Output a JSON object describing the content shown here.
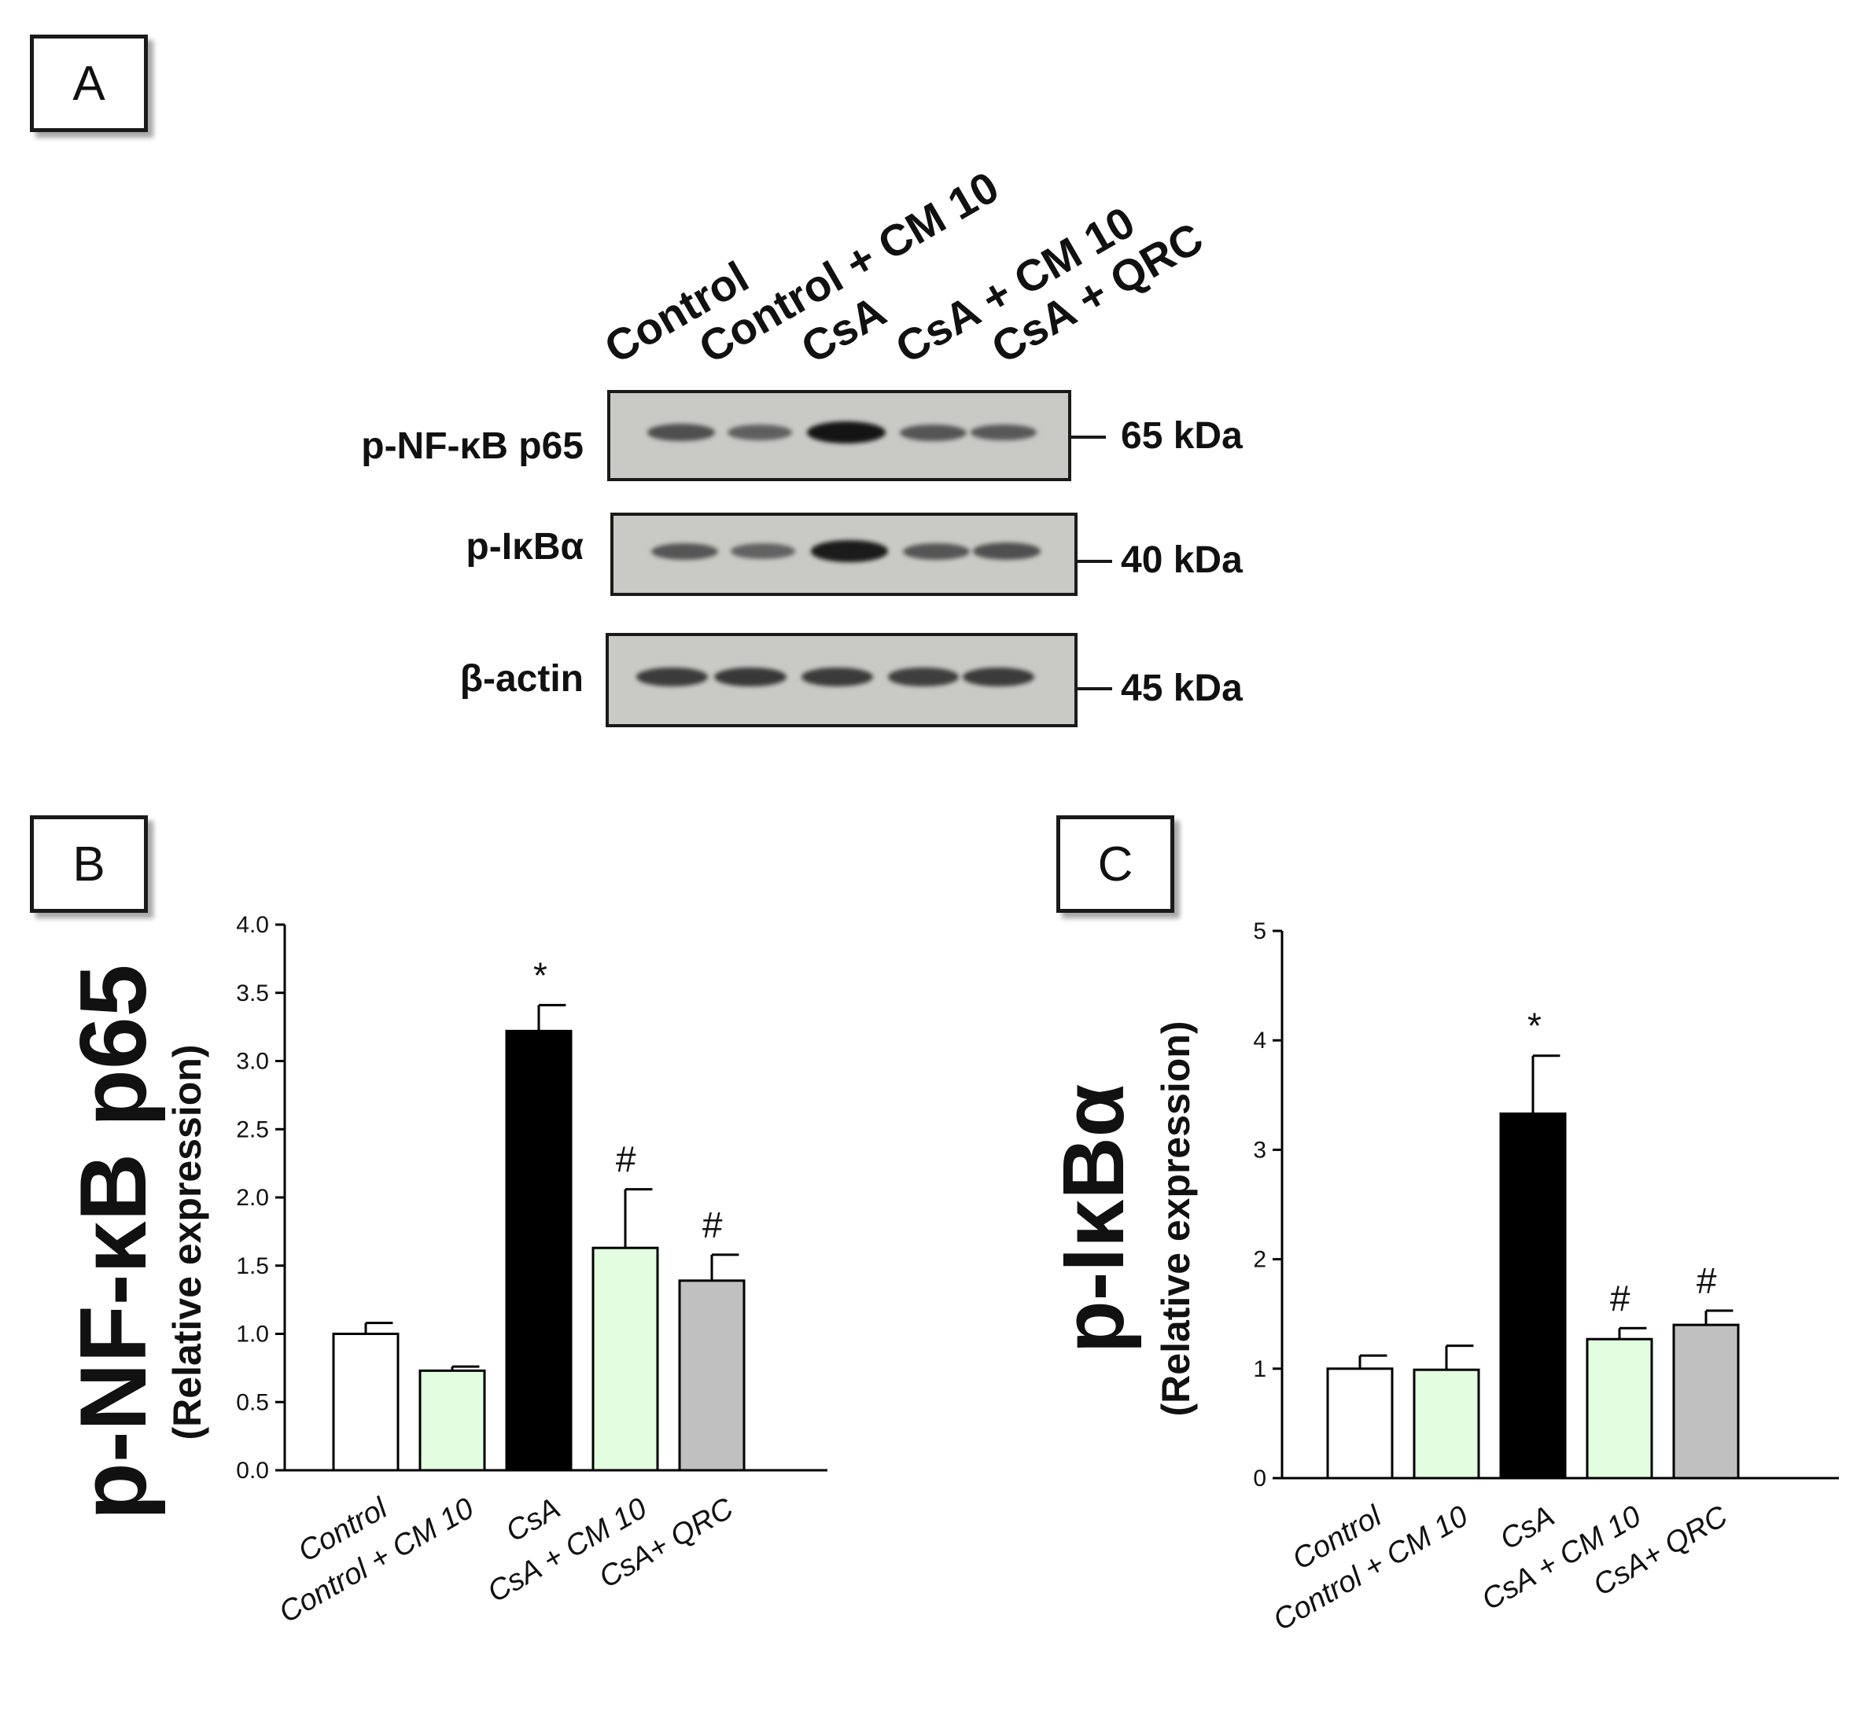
{
  "panels": {
    "a": "A",
    "b": "B",
    "c": "C"
  },
  "blot": {
    "lanes": [
      "Control",
      "Control + CM 10",
      "CsA",
      "CsA + CM 10",
      "CsA + QRC"
    ],
    "rows": [
      {
        "label": "p-NF-κB p65",
        "kda": "65 kDa",
        "intensity": [
          0.55,
          0.42,
          1.0,
          0.5,
          0.48
        ]
      },
      {
        "label": "p-IκBα",
        "kda": "40 kDa",
        "intensity": [
          0.5,
          0.4,
          0.95,
          0.5,
          0.55
        ]
      },
      {
        "label": "β-actin",
        "kda": "45 kDa",
        "intensity": [
          0.7,
          0.72,
          0.7,
          0.68,
          0.7
        ]
      }
    ]
  },
  "chart_data": [
    {
      "type": "bar",
      "ylabel": "p-NF-κB p65",
      "ysublabel": "(Relative expression)",
      "categories": [
        "Control",
        "Control +  CM 10",
        "CsA",
        "CsA + CM 10",
        "CsA+ QRC"
      ],
      "values": [
        1.0,
        0.73,
        3.22,
        1.63,
        1.39
      ],
      "errors": [
        0.08,
        0.03,
        0.19,
        0.43,
        0.19
      ],
      "annotations": [
        "",
        "",
        "*",
        "#",
        "#"
      ],
      "colors": [
        "#ffffff",
        "#e3fde0",
        "#000000",
        "#e3fde0",
        "#c0c0c0"
      ],
      "ylim": [
        0,
        4.0
      ],
      "yticks": [
        "0.0",
        "0.5",
        "1.0",
        "1.5",
        "2.0",
        "2.5",
        "3.0",
        "3.5",
        "4.0"
      ]
    },
    {
      "type": "bar",
      "ylabel": "p-IκBα",
      "ysublabel": "(Relative expression)",
      "categories": [
        "Control",
        "Control +  CM 10",
        "CsA",
        "CsA + CM 10",
        "CsA+ QRC"
      ],
      "values": [
        1.0,
        0.99,
        3.33,
        1.27,
        1.4
      ],
      "errors": [
        0.12,
        0.22,
        0.53,
        0.1,
        0.13
      ],
      "annotations": [
        "",
        "",
        "*",
        "#",
        "#"
      ],
      "colors": [
        "#ffffff",
        "#e3fde0",
        "#000000",
        "#e3fde0",
        "#c0c0c0"
      ],
      "ylim": [
        0,
        5
      ],
      "yticks": [
        "0",
        "1",
        "2",
        "3",
        "4",
        "5"
      ]
    }
  ]
}
